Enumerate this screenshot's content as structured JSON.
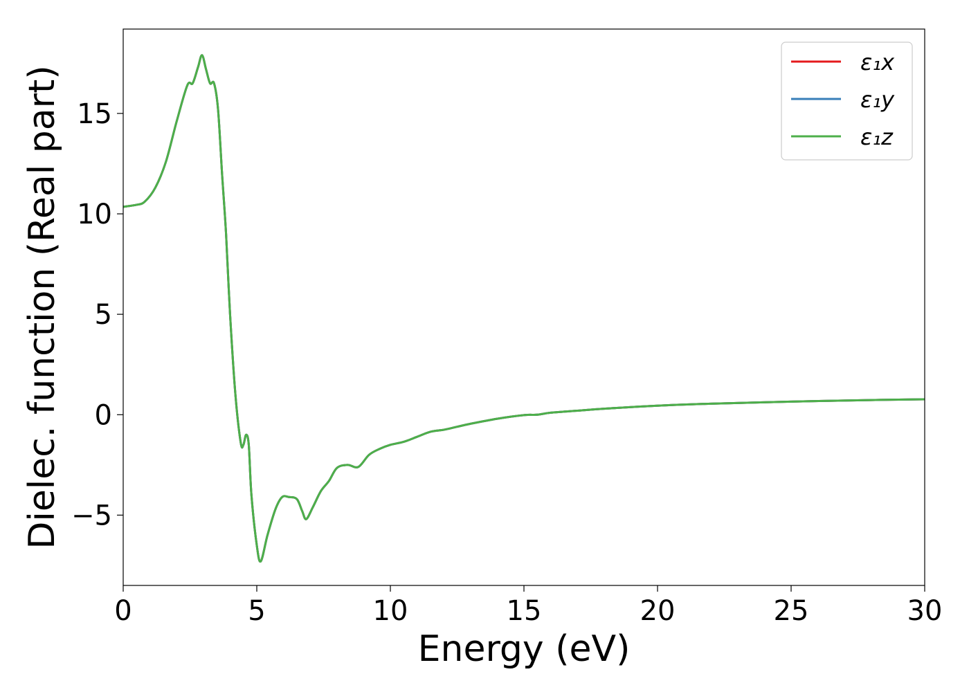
{
  "chart_data": {
    "type": "line",
    "title": "",
    "xlabel": "Energy (eV)",
    "ylabel": "Dielec. function (Real part)",
    "xlim": [
      0,
      30
    ],
    "ylim": [
      -8.5,
      19.2
    ],
    "xticks": [
      0,
      5,
      10,
      15,
      20,
      25,
      30
    ],
    "yticks": [
      -5,
      0,
      5,
      10,
      15
    ],
    "xtick_labels": [
      "0",
      "5",
      "10",
      "15",
      "20",
      "25",
      "30"
    ],
    "ytick_labels": [
      "−5",
      "0",
      "5",
      "10",
      "15"
    ],
    "grid": false,
    "legend": {
      "position": "top-right"
    },
    "x": [
      0,
      0.5,
      0.8,
      1.2,
      1.6,
      2.0,
      2.4,
      2.6,
      2.8,
      2.95,
      3.1,
      3.25,
      3.4,
      3.55,
      3.7,
      3.85,
      4.0,
      4.2,
      4.4,
      4.5,
      4.6,
      4.7,
      4.8,
      5.0,
      5.15,
      5.4,
      5.7,
      5.95,
      6.2,
      6.5,
      6.7,
      6.85,
      7.1,
      7.4,
      7.7,
      8.0,
      8.4,
      8.8,
      9.2,
      9.6,
      10.0,
      10.5,
      11.0,
      11.5,
      12.0,
      12.5,
      13.0,
      14.0,
      15.0,
      15.5,
      16.0,
      17.0,
      18.0,
      20.0,
      22.0,
      25.0,
      28.0,
      30.0
    ],
    "series": [
      {
        "name": "ε₁x",
        "color": "#e41a1c",
        "values": [
          10.35,
          10.45,
          10.6,
          11.3,
          12.6,
          14.6,
          16.4,
          16.5,
          17.3,
          17.9,
          17.2,
          16.5,
          16.5,
          15.2,
          12.0,
          9.0,
          5.0,
          1.0,
          -1.4,
          -1.5,
          -1.0,
          -1.5,
          -4.0,
          -6.5,
          -7.3,
          -6.0,
          -4.7,
          -4.1,
          -4.1,
          -4.2,
          -4.8,
          -5.2,
          -4.6,
          -3.8,
          -3.3,
          -2.65,
          -2.5,
          -2.6,
          -2.0,
          -1.7,
          -1.5,
          -1.35,
          -1.1,
          -0.85,
          -0.75,
          -0.6,
          -0.45,
          -0.2,
          -0.02,
          0.0,
          0.1,
          0.2,
          0.3,
          0.45,
          0.55,
          0.65,
          0.73,
          0.77
        ]
      },
      {
        "name": "ε₁y",
        "color": "#377eb8",
        "values": [
          10.35,
          10.45,
          10.6,
          11.3,
          12.6,
          14.6,
          16.4,
          16.5,
          17.3,
          17.9,
          17.2,
          16.5,
          16.5,
          15.2,
          12.0,
          9.0,
          5.0,
          1.0,
          -1.4,
          -1.5,
          -1.0,
          -1.5,
          -4.0,
          -6.5,
          -7.3,
          -6.0,
          -4.7,
          -4.1,
          -4.1,
          -4.2,
          -4.8,
          -5.2,
          -4.6,
          -3.8,
          -3.3,
          -2.65,
          -2.5,
          -2.6,
          -2.0,
          -1.7,
          -1.5,
          -1.35,
          -1.1,
          -0.85,
          -0.75,
          -0.6,
          -0.45,
          -0.2,
          -0.02,
          0.0,
          0.1,
          0.2,
          0.3,
          0.45,
          0.55,
          0.65,
          0.73,
          0.77
        ]
      },
      {
        "name": "ε₁z",
        "color": "#4daf4a",
        "values": [
          10.35,
          10.45,
          10.6,
          11.3,
          12.6,
          14.6,
          16.4,
          16.5,
          17.3,
          17.9,
          17.2,
          16.5,
          16.5,
          15.2,
          12.0,
          9.0,
          5.0,
          1.0,
          -1.4,
          -1.5,
          -1.0,
          -1.5,
          -4.0,
          -6.5,
          -7.3,
          -6.0,
          -4.7,
          -4.1,
          -4.1,
          -4.2,
          -4.8,
          -5.2,
          -4.6,
          -3.8,
          -3.3,
          -2.65,
          -2.5,
          -2.6,
          -2.0,
          -1.7,
          -1.5,
          -1.35,
          -1.1,
          -0.85,
          -0.75,
          -0.6,
          -0.45,
          -0.2,
          -0.02,
          0.0,
          0.1,
          0.2,
          0.3,
          0.45,
          0.55,
          0.65,
          0.73,
          0.77
        ]
      }
    ]
  }
}
